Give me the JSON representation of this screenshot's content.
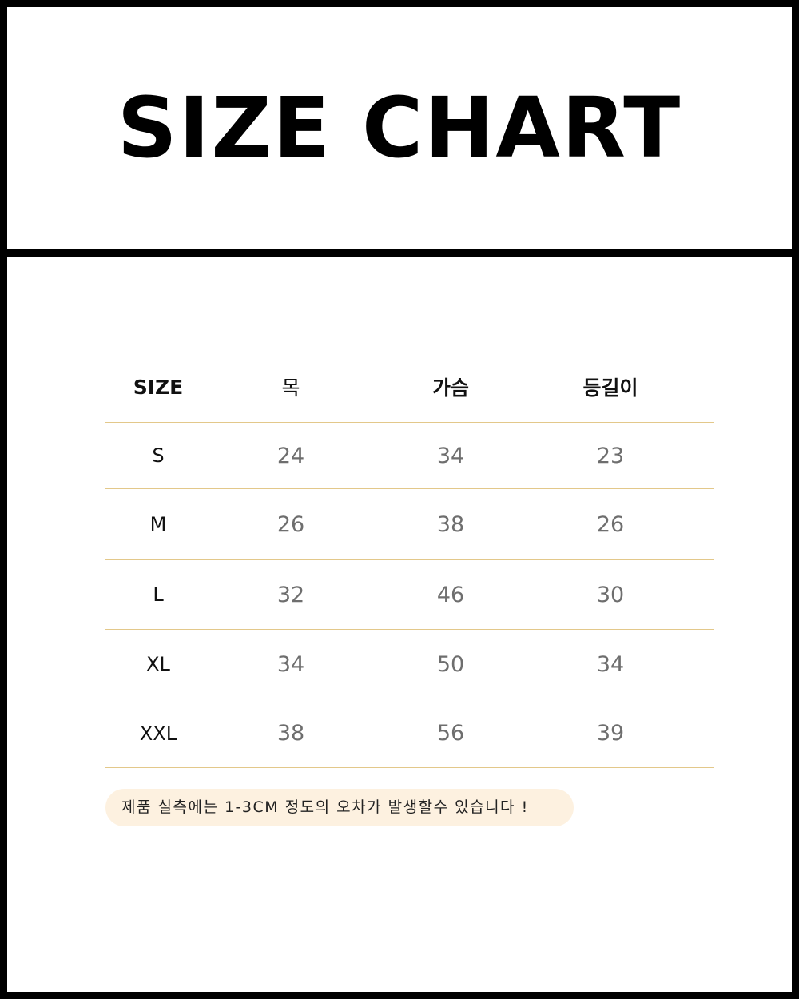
{
  "title": "SIZE CHART",
  "table": {
    "headers": [
      "SIZE",
      "목",
      "가슴",
      "등길이"
    ],
    "rows": [
      [
        "S",
        "24",
        "34",
        "23"
      ],
      [
        "M",
        "26",
        "38",
        "26"
      ],
      [
        "L",
        "32",
        "46",
        "30"
      ],
      [
        "XL",
        "34",
        "50",
        "34"
      ],
      [
        "XXL",
        "38",
        "56",
        "39"
      ]
    ]
  },
  "note": "제품 실측에는 1-3CM 정도의 오차가 발생할수 있습니다 !",
  "colors": {
    "border": "#000000",
    "row_line": "#e3c88a",
    "note_bg": "#fdf1e0",
    "value_text": "#6e6e6e"
  }
}
